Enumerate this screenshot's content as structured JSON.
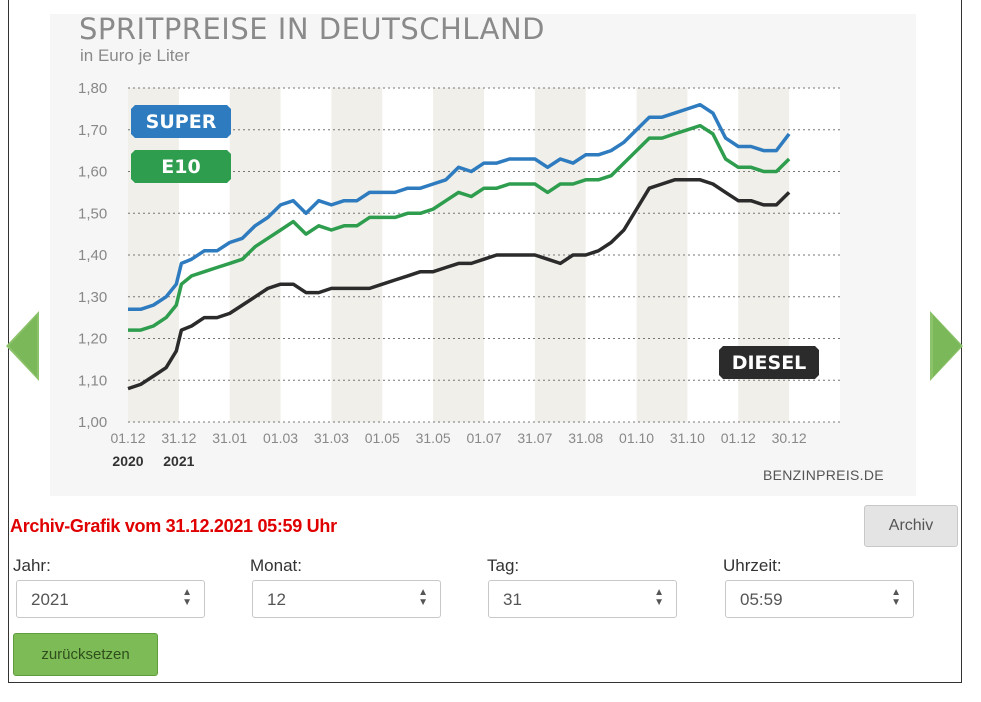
{
  "chart_data": {
    "type": "line",
    "title": "SPRITPREISE IN DEUTSCHLAND",
    "subtitle": "in Euro je Liter",
    "source": "BENZINPREIS.DE",
    "ylim": [
      1.0,
      1.8
    ],
    "yticks": [
      "1,00",
      "1,10",
      "1,20",
      "1,30",
      "1,40",
      "1,50",
      "1,60",
      "1,70",
      "1,80"
    ],
    "xlim": [
      0,
      28
    ],
    "xticks": [
      {
        "pos": 0,
        "label": "01.12",
        "year": "2020"
      },
      {
        "pos": 2,
        "label": "31.12",
        "year": "2021"
      },
      {
        "pos": 4,
        "label": "31.01",
        "year": ""
      },
      {
        "pos": 6,
        "label": "01.03",
        "year": ""
      },
      {
        "pos": 8,
        "label": "31.03",
        "year": ""
      },
      {
        "pos": 10,
        "label": "01.05",
        "year": ""
      },
      {
        "pos": 12,
        "label": "31.05",
        "year": ""
      },
      {
        "pos": 14,
        "label": "01.07",
        "year": ""
      },
      {
        "pos": 16,
        "label": "31.07",
        "year": ""
      },
      {
        "pos": 18,
        "label": "31.08",
        "year": ""
      },
      {
        "pos": 20,
        "label": "01.10",
        "year": ""
      },
      {
        "pos": 22,
        "label": "31.10",
        "year": ""
      },
      {
        "pos": 24,
        "label": "01.12",
        "year": ""
      },
      {
        "pos": 26,
        "label": "30.12",
        "year": ""
      }
    ],
    "shaded_bands": [
      [
        0,
        2
      ],
      [
        4,
        6
      ],
      [
        8,
        10
      ],
      [
        12,
        14
      ],
      [
        16,
        18
      ],
      [
        20,
        22
      ],
      [
        24,
        26
      ]
    ],
    "series": [
      {
        "name": "SUPER",
        "color": "#2e7cbf",
        "x": [
          0,
          0.5,
          1,
          1.5,
          1.9,
          2.1,
          2.5,
          3,
          3.5,
          4,
          4.5,
          5,
          5.5,
          6,
          6.5,
          7,
          7.5,
          8,
          8.5,
          9,
          9.5,
          10,
          10.5,
          11,
          11.5,
          12,
          12.5,
          13,
          13.5,
          14,
          14.5,
          15,
          15.5,
          16,
          16.5,
          17,
          17.5,
          18,
          18.5,
          19,
          19.5,
          20,
          20.5,
          21,
          21.5,
          22,
          22.5,
          23,
          23.5,
          24,
          24.5,
          25,
          25.5,
          26
        ],
        "y": [
          1.27,
          1.27,
          1.28,
          1.3,
          1.33,
          1.38,
          1.39,
          1.41,
          1.41,
          1.43,
          1.44,
          1.47,
          1.49,
          1.52,
          1.53,
          1.5,
          1.53,
          1.52,
          1.53,
          1.53,
          1.55,
          1.55,
          1.55,
          1.56,
          1.56,
          1.57,
          1.58,
          1.61,
          1.6,
          1.62,
          1.62,
          1.63,
          1.63,
          1.63,
          1.61,
          1.63,
          1.62,
          1.64,
          1.64,
          1.65,
          1.67,
          1.7,
          1.73,
          1.73,
          1.74,
          1.75,
          1.76,
          1.74,
          1.68,
          1.66,
          1.66,
          1.65,
          1.65,
          1.69
        ]
      },
      {
        "name": "E10",
        "color": "#2e9e4e",
        "x": [
          0,
          0.5,
          1,
          1.5,
          1.9,
          2.1,
          2.5,
          3,
          3.5,
          4,
          4.5,
          5,
          5.5,
          6,
          6.5,
          7,
          7.5,
          8,
          8.5,
          9,
          9.5,
          10,
          10.5,
          11,
          11.5,
          12,
          12.5,
          13,
          13.5,
          14,
          14.5,
          15,
          15.5,
          16,
          16.5,
          17,
          17.5,
          18,
          18.5,
          19,
          19.5,
          20,
          20.5,
          21,
          21.5,
          22,
          22.5,
          23,
          23.5,
          24,
          24.5,
          25,
          25.5,
          26
        ],
        "y": [
          1.22,
          1.22,
          1.23,
          1.25,
          1.28,
          1.33,
          1.35,
          1.36,
          1.37,
          1.38,
          1.39,
          1.42,
          1.44,
          1.46,
          1.48,
          1.45,
          1.47,
          1.46,
          1.47,
          1.47,
          1.49,
          1.49,
          1.49,
          1.5,
          1.5,
          1.51,
          1.53,
          1.55,
          1.54,
          1.56,
          1.56,
          1.57,
          1.57,
          1.57,
          1.55,
          1.57,
          1.57,
          1.58,
          1.58,
          1.59,
          1.62,
          1.65,
          1.68,
          1.68,
          1.69,
          1.7,
          1.71,
          1.69,
          1.63,
          1.61,
          1.61,
          1.6,
          1.6,
          1.63
        ]
      },
      {
        "name": "DIESEL",
        "color": "#2b2b2b",
        "x": [
          0,
          0.5,
          1,
          1.5,
          1.9,
          2.1,
          2.5,
          3,
          3.5,
          4,
          4.5,
          5,
          5.5,
          6,
          6.5,
          7,
          7.5,
          8,
          8.5,
          9,
          9.5,
          10,
          10.5,
          11,
          11.5,
          12,
          12.5,
          13,
          13.5,
          14,
          14.5,
          15,
          15.5,
          16,
          16.5,
          17,
          17.5,
          18,
          18.5,
          19,
          19.5,
          20,
          20.5,
          21,
          21.5,
          22,
          22.5,
          23,
          23.5,
          24,
          24.5,
          25,
          25.5,
          26
        ],
        "y": [
          1.08,
          1.09,
          1.11,
          1.13,
          1.17,
          1.22,
          1.23,
          1.25,
          1.25,
          1.26,
          1.28,
          1.3,
          1.32,
          1.33,
          1.33,
          1.31,
          1.31,
          1.32,
          1.32,
          1.32,
          1.32,
          1.33,
          1.34,
          1.35,
          1.36,
          1.36,
          1.37,
          1.38,
          1.38,
          1.39,
          1.4,
          1.4,
          1.4,
          1.4,
          1.39,
          1.38,
          1.4,
          1.4,
          1.41,
          1.43,
          1.46,
          1.51,
          1.56,
          1.57,
          1.58,
          1.58,
          1.58,
          1.57,
          1.55,
          1.53,
          1.53,
          1.52,
          1.52,
          1.55
        ]
      }
    ],
    "legend_badges": [
      {
        "label": "SUPER",
        "color": "#2e7cbf",
        "placement": "top-left"
      },
      {
        "label": "E10",
        "color": "#2e9e4e",
        "placement": "top-left"
      },
      {
        "label": "DIESEL",
        "color": "#2b2b2b",
        "placement": "right"
      }
    ],
    "grid": "dotted horizontal"
  },
  "archive": {
    "heading": "Archiv-Grafik vom 31.12.2021 05:59 Uhr",
    "button_label": "Archiv"
  },
  "fields": {
    "year": {
      "label": "Jahr:",
      "value": "2021"
    },
    "month": {
      "label": "Monat:",
      "value": "12"
    },
    "day": {
      "label": "Tag:",
      "value": "31"
    },
    "time": {
      "label": "Uhrzeit:",
      "value": "05:59"
    }
  },
  "reset_label": "zurücksetzen",
  "colors": {
    "accent_green": "#7dbb57",
    "archive_red": "#e00000"
  }
}
